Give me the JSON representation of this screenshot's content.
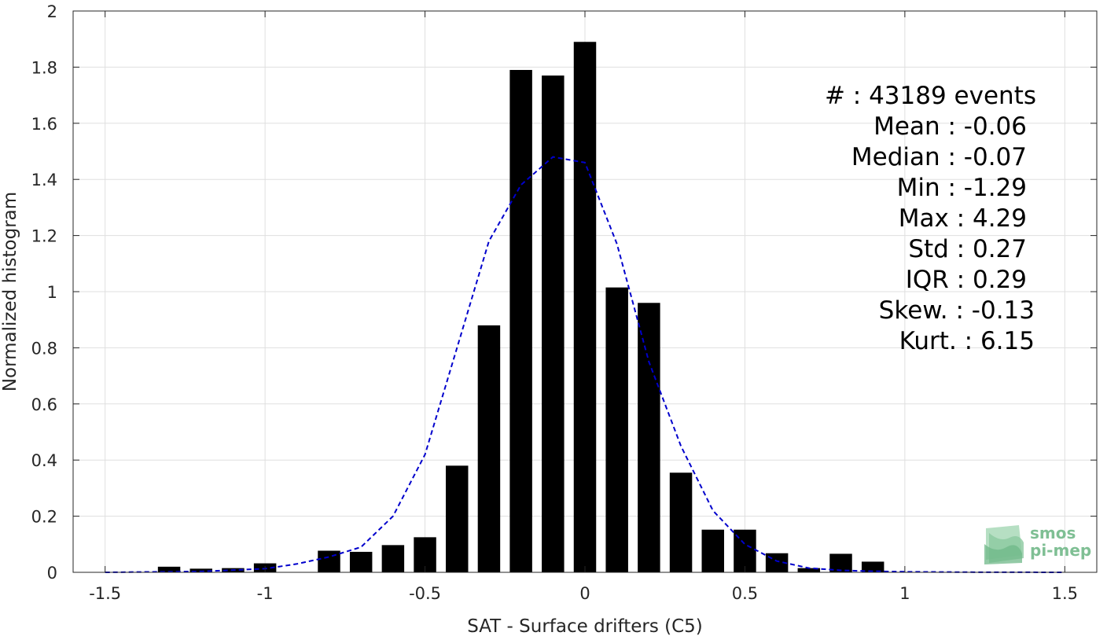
{
  "chart_data": {
    "type": "bar",
    "xlabel": "SAT - Surface drifters (C5)",
    "ylabel": "Normalized histogram",
    "xlim": [
      -1.6,
      1.6
    ],
    "ylim": [
      0,
      2
    ],
    "xticks": [
      -1.5,
      -1,
      -0.5,
      0,
      0.5,
      1,
      1.5
    ],
    "xtick_labels": [
      "-1.5",
      "-1",
      "-0.5",
      "0",
      "0.5",
      "1",
      "1.5"
    ],
    "yticks": [
      0,
      0.2,
      0.4,
      0.6,
      0.8,
      1,
      1.2,
      1.4,
      1.6,
      1.8,
      2
    ],
    "ytick_labels": [
      "0",
      "0.2",
      "0.4",
      "0.6",
      "0.8",
      "1",
      "1.2",
      "1.4",
      "1.6",
      "1.8",
      "2"
    ],
    "grid": true,
    "bar_width": 0.07,
    "bar_color": "#000000",
    "curve_color": "#0000cc",
    "bins": [
      {
        "x": -1.3,
        "value": 0.02
      },
      {
        "x": -1.2,
        "value": 0.013
      },
      {
        "x": -1.1,
        "value": 0.015
      },
      {
        "x": -1.0,
        "value": 0.032
      },
      {
        "x": -0.8,
        "value": 0.077
      },
      {
        "x": -0.7,
        "value": 0.073
      },
      {
        "x": -0.6,
        "value": 0.097
      },
      {
        "x": -0.5,
        "value": 0.125
      },
      {
        "x": -0.4,
        "value": 0.38
      },
      {
        "x": -0.3,
        "value": 0.88
      },
      {
        "x": -0.2,
        "value": 1.79
      },
      {
        "x": -0.1,
        "value": 1.77
      },
      {
        "x": 0.0,
        "value": 1.89
      },
      {
        "x": 0.1,
        "value": 1.015
      },
      {
        "x": 0.2,
        "value": 0.96
      },
      {
        "x": 0.3,
        "value": 0.355
      },
      {
        "x": 0.4,
        "value": 0.152
      },
      {
        "x": 0.5,
        "value": 0.152
      },
      {
        "x": 0.6,
        "value": 0.068
      },
      {
        "x": 0.7,
        "value": 0.015
      },
      {
        "x": 0.8,
        "value": 0.066
      },
      {
        "x": 0.9,
        "value": 0.038
      }
    ],
    "fit_curve": {
      "x": [
        -1.5,
        -1.2,
        -1.0,
        -0.9,
        -0.8,
        -0.7,
        -0.6,
        -0.5,
        -0.4,
        -0.3,
        -0.2,
        -0.1,
        0.0,
        0.1,
        0.2,
        0.3,
        0.4,
        0.5,
        0.6,
        0.7,
        0.8,
        0.9,
        1.0,
        1.2,
        1.5
      ],
      "y": [
        0,
        0.003,
        0.013,
        0.03,
        0.055,
        0.09,
        0.2,
        0.42,
        0.8,
        1.18,
        1.38,
        1.48,
        1.46,
        1.17,
        0.75,
        0.45,
        0.22,
        0.1,
        0.04,
        0.015,
        0.007,
        0.004,
        0.002,
        0.0005,
        0
      ]
    },
    "stats": [
      {
        "label": "#  : 43189 events",
        "anchor": "end"
      },
      {
        "label": "Mean : -0.06",
        "anchor": "end"
      },
      {
        "label": "Median : -0.07",
        "anchor": "end"
      },
      {
        "label": "Min : -1.29",
        "anchor": "end"
      },
      {
        "label": "Max : 4.29",
        "anchor": "end"
      },
      {
        "label": "Std : 0.27",
        "anchor": "end"
      },
      {
        "label": "IQR : 0.29",
        "anchor": "end"
      },
      {
        "label": "Skew. : -0.13",
        "anchor": "end"
      },
      {
        "label": "Kurt. : 6.15",
        "anchor": "end"
      }
    ]
  },
  "logo": {
    "line1": "smos",
    "line2": "pi-mep",
    "icon": "wave-stack-icon",
    "color": "#7fbf94"
  }
}
